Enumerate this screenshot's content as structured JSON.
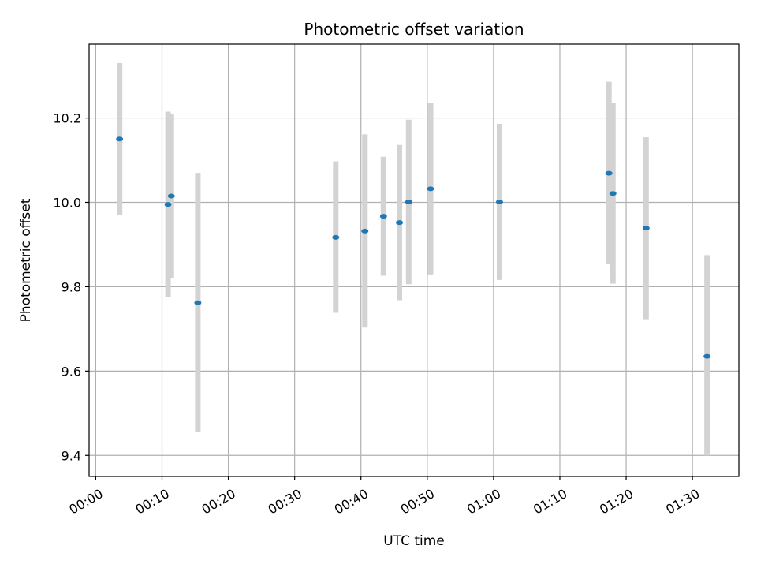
{
  "chart_data": {
    "type": "scatter",
    "title": "Photometric offset variation",
    "xlabel": "UTC time",
    "ylabel": "Photometric offset",
    "x_unit": "minutes after 00:00 UTC",
    "xlim": [
      -1,
      97
    ],
    "ylim": [
      9.35,
      10.375
    ],
    "grid": true,
    "x_ticks": [
      0,
      10,
      20,
      30,
      40,
      50,
      60,
      70,
      80,
      90
    ],
    "x_tick_labels": [
      "00:00",
      "00:10",
      "00:20",
      "00:30",
      "00:40",
      "00:50",
      "01:00",
      "01:10",
      "01:20",
      "01:30"
    ],
    "y_ticks": [
      9.4,
      9.6,
      9.8,
      10.0,
      10.2
    ],
    "y_tick_labels": [
      "9.4",
      "9.6",
      "9.8",
      "10.0",
      "10.2"
    ],
    "marker_color": "#1f77b4",
    "errorbar_color": "#d3d3d3",
    "points": [
      {
        "x": 3.6,
        "y": 10.15,
        "low": 9.97,
        "high": 10.33
      },
      {
        "x": 10.9,
        "y": 9.995,
        "low": 9.775,
        "high": 10.215
      },
      {
        "x": 11.4,
        "y": 10.015,
        "low": 9.82,
        "high": 10.21
      },
      {
        "x": 15.4,
        "y": 9.762,
        "low": 9.455,
        "high": 10.07
      },
      {
        "x": 36.2,
        "y": 9.917,
        "low": 9.738,
        "high": 10.097
      },
      {
        "x": 40.6,
        "y": 9.932,
        "low": 9.703,
        "high": 10.161
      },
      {
        "x": 43.4,
        "y": 9.967,
        "low": 9.826,
        "high": 10.108
      },
      {
        "x": 45.8,
        "y": 9.952,
        "low": 9.768,
        "high": 10.136
      },
      {
        "x": 47.2,
        "y": 10.001,
        "low": 9.806,
        "high": 10.196
      },
      {
        "x": 50.5,
        "y": 10.032,
        "low": 9.829,
        "high": 10.235
      },
      {
        "x": 60.9,
        "y": 10.001,
        "low": 9.816,
        "high": 10.186
      },
      {
        "x": 77.4,
        "y": 10.069,
        "low": 9.853,
        "high": 10.286
      },
      {
        "x": 78.0,
        "y": 10.021,
        "low": 9.807,
        "high": 10.235
      },
      {
        "x": 83.0,
        "y": 9.939,
        "low": 9.723,
        "high": 10.154
      },
      {
        "x": 92.2,
        "y": 9.635,
        "low": 9.4,
        "high": 9.875
      }
    ]
  }
}
